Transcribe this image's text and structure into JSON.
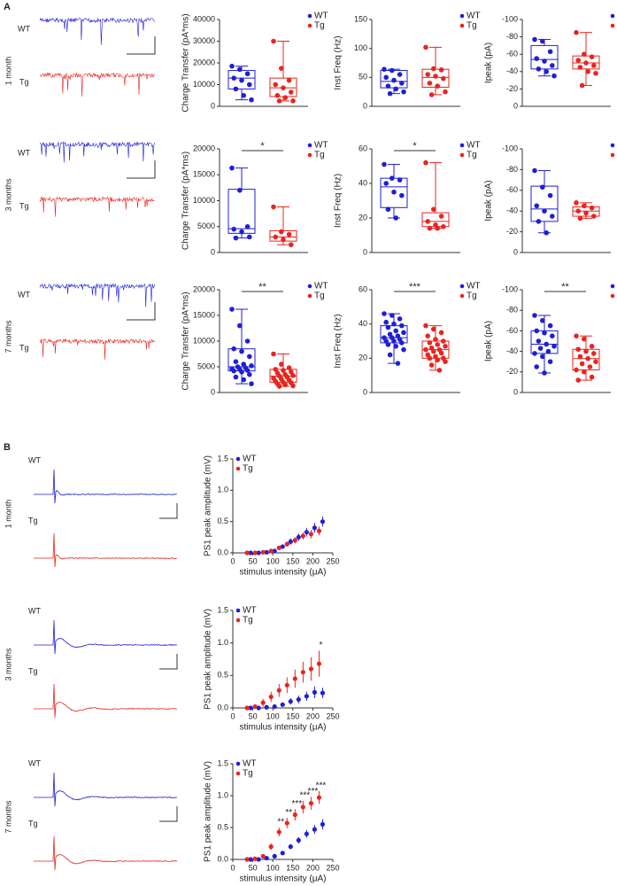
{
  "panel_a": {
    "letter": "A",
    "rows": [
      {
        "age": "1 month",
        "labels": [
          "WT",
          "Tg"
        ]
      },
      {
        "age": "3 months",
        "labels": [
          "WT",
          "Tg"
        ]
      },
      {
        "age": "7 months",
        "labels": [
          "WT",
          "Tg"
        ]
      }
    ]
  },
  "panel_b": {
    "letter": "B",
    "rows": [
      {
        "age": "1 month",
        "labels": [
          "WT",
          "Tg"
        ]
      },
      {
        "age": "3 months",
        "labels": [
          "WT",
          "Tg"
        ]
      },
      {
        "age": "7 months",
        "labels": [
          "WT",
          "Tg"
        ]
      }
    ]
  },
  "chart_data": [
    {
      "type": "box",
      "ylabel": "Charge Transfer (pA*ms)",
      "ylim": [
        0,
        40000
      ],
      "yticks": [
        0,
        10000,
        20000,
        30000,
        40000
      ],
      "series": [
        {
          "name": "WT",
          "color": "#1f1fd6",
          "values": [
            18500,
            17000,
            15000,
            13000,
            12000,
            10000,
            8000,
            5000,
            3000
          ],
          "box": [
            3000,
            8000,
            13000,
            16500,
            18500
          ]
        },
        {
          "name": "Tg",
          "color": "#e8251f",
          "values": [
            30000,
            17500,
            12000,
            10000,
            8500,
            6500,
            5000,
            4000,
            2500,
            2500
          ],
          "box": [
            2500,
            4500,
            8500,
            13000,
            30000
          ]
        }
      ]
    },
    {
      "type": "box",
      "ylabel": "Inst Freq (Hz)",
      "ylim": [
        0,
        150
      ],
      "yticks": [
        0,
        50,
        100,
        150
      ],
      "series": [
        {
          "name": "WT",
          "color": "#1f1fd6",
          "values": [
            64,
            62,
            55,
            50,
            45,
            40,
            35,
            30,
            25,
            22
          ],
          "box": [
            22,
            32,
            43,
            62,
            64
          ]
        },
        {
          "name": "Tg",
          "color": "#e8251f",
          "values": [
            102,
            65,
            63,
            55,
            52,
            48,
            40,
            35,
            25,
            20
          ],
          "box": [
            20,
            33,
            50,
            64,
            102
          ]
        }
      ]
    },
    {
      "type": "box",
      "ylabel": "Ipeak (pA)",
      "ylim": [
        0,
        -100
      ],
      "yticks": [
        0,
        -20,
        -40,
        -60,
        -80,
        -100
      ],
      "series": [
        {
          "name": "WT",
          "color": "#1f1fd6",
          "values": [
            -77,
            -75,
            -63,
            -55,
            -52,
            -47,
            -43,
            -40,
            -35
          ],
          "box": [
            -35,
            -43,
            -54,
            -70,
            -77
          ]
        },
        {
          "name": "Tg",
          "color": "#e8251f",
          "values": [
            -85,
            -60,
            -57,
            -53,
            -50,
            -47,
            -45,
            -40,
            -38,
            -24
          ],
          "box": [
            -24,
            -43,
            -50,
            -58,
            -85
          ]
        }
      ]
    },
    {
      "type": "box",
      "ylabel": "Charge Transfer (pA*ms)",
      "ylim": [
        0,
        20000
      ],
      "yticks": [
        0,
        5000,
        10000,
        15000,
        20000
      ],
      "significance": "*",
      "series": [
        {
          "name": "WT",
          "color": "#1f1fd6",
          "values": [
            16300,
            12000,
            5000,
            4500,
            4000,
            3000,
            2800
          ],
          "box": [
            2800,
            3700,
            4600,
            12200,
            16300
          ]
        },
        {
          "name": "Tg",
          "color": "#e8251f",
          "values": [
            8800,
            4000,
            3500,
            3000,
            2500,
            1500
          ],
          "box": [
            1500,
            2200,
            3000,
            4200,
            8800
          ]
        }
      ]
    },
    {
      "type": "box",
      "ylabel": "Inst Freq (Hz)",
      "ylim": [
        0,
        60
      ],
      "yticks": [
        0,
        20,
        40,
        60
      ],
      "significance": "*",
      "series": [
        {
          "name": "WT",
          "color": "#1f1fd6",
          "values": [
            51,
            43,
            42,
            40,
            35,
            33,
            25,
            20
          ],
          "box": [
            20,
            26,
            38,
            43,
            51
          ]
        },
        {
          "name": "Tg",
          "color": "#e8251f",
          "values": [
            52,
            25,
            21,
            18,
            16,
            15,
            14,
            14
          ],
          "box": [
            14,
            15,
            18,
            23,
            52
          ]
        }
      ]
    },
    {
      "type": "box",
      "ylabel": "Ipeak (pA)",
      "ylim": [
        0,
        -100
      ],
      "yticks": [
        0,
        -20,
        -40,
        -60,
        -80,
        -100
      ],
      "series": [
        {
          "name": "WT",
          "color": "#1f1fd6",
          "values": [
            -79,
            -63,
            -55,
            -45,
            -40,
            -35,
            -30,
            -19
          ],
          "box": [
            -19,
            -30,
            -42,
            -64,
            -79
          ]
        },
        {
          "name": "Tg",
          "color": "#e8251f",
          "values": [
            -48,
            -45,
            -43,
            -40,
            -38,
            -35,
            -33
          ],
          "box": [
            -33,
            -35,
            -40,
            -44,
            -48
          ]
        }
      ]
    },
    {
      "type": "box",
      "ylabel": "Charge Transfer (pA*ms)",
      "ylim": [
        0,
        20000
      ],
      "yticks": [
        0,
        5000,
        10000,
        15000,
        20000
      ],
      "significance": "**",
      "series": [
        {
          "name": "WT",
          "color": "#1f1fd6",
          "values": [
            16200,
            13000,
            10000,
            8500,
            8000,
            7000,
            6000,
            5500,
            5200,
            5000,
            4800,
            4600,
            4500,
            4300,
            4200,
            4000,
            3500,
            3000,
            2500,
            1700
          ],
          "box": [
            1700,
            4200,
            5000,
            8500,
            16200
          ]
        },
        {
          "name": "Tg",
          "color": "#e8251f",
          "values": [
            7500,
            5500,
            4800,
            4500,
            4300,
            4000,
            3800,
            3500,
            3300,
            3200,
            3000,
            2800,
            2600,
            2400,
            2200,
            2000,
            1900,
            1700,
            1500,
            1300,
            1200
          ],
          "box": [
            1200,
            2000,
            3200,
            4500,
            7500
          ]
        }
      ]
    },
    {
      "type": "box",
      "ylabel": "Inst Freq (Hz)",
      "ylim": [
        0,
        60
      ],
      "yticks": [
        0,
        20,
        40,
        60
      ],
      "significance": "***",
      "series": [
        {
          "name": "WT",
          "color": "#1f1fd6",
          "values": [
            46,
            45,
            43,
            41,
            40,
            39,
            38,
            36,
            35,
            34,
            33,
            32,
            32,
            31,
            30,
            30,
            29,
            28,
            27,
            25,
            22,
            17
          ],
          "box": [
            17,
            29,
            32,
            39,
            46
          ]
        },
        {
          "name": "Tg",
          "color": "#e8251f",
          "values": [
            39,
            37,
            35,
            33,
            31,
            30,
            29,
            28,
            27,
            26,
            25,
            25,
            24,
            23,
            22,
            21,
            20,
            20,
            19,
            18,
            16,
            13
          ],
          "box": [
            13,
            20,
            25,
            30,
            39
          ]
        }
      ]
    },
    {
      "type": "box",
      "ylabel": "Ipeak (pA)",
      "ylim": [
        0,
        -100
      ],
      "yticks": [
        0,
        -20,
        -40,
        -60,
        -80,
        -100
      ],
      "significance": "**",
      "series": [
        {
          "name": "WT",
          "color": "#1f1fd6",
          "values": [
            -75,
            -70,
            -65,
            -60,
            -58,
            -55,
            -50,
            -47,
            -45,
            -43,
            -40,
            -38,
            -35,
            -30,
            -25,
            -19
          ],
          "box": [
            -19,
            -38,
            -47,
            -60,
            -75
          ]
        },
        {
          "name": "Tg",
          "color": "#e8251f",
          "values": [
            -55,
            -52,
            -45,
            -42,
            -40,
            -38,
            -35,
            -33,
            -30,
            -28,
            -25,
            -22,
            -20,
            -15,
            -12
          ],
          "box": [
            -12,
            -22,
            -33,
            -42,
            -55
          ]
        }
      ]
    },
    {
      "type": "errorscatter",
      "ylabel": "PS1 peak amplitude (mV)",
      "xlabel": "stimulus intensity (μA)",
      "xlim": [
        0,
        250
      ],
      "xticks": [
        0,
        50,
        100,
        150,
        200,
        250
      ],
      "ylim": [
        0,
        1.5
      ],
      "yticks": [
        {
          "value": 0,
          "label": "0.0"
        },
        0.5,
        {
          "value": 1,
          "label": "1.0"
        },
        1.5
      ],
      "x": [
        40,
        60,
        80,
        100,
        120,
        140,
        160,
        180,
        200,
        220
      ],
      "series": [
        {
          "name": "WT",
          "color": "#1f1fd6",
          "values": [
            0,
            0,
            0.01,
            0.03,
            0.1,
            0.18,
            0.25,
            0.33,
            0.4,
            0.5
          ],
          "errors": [
            0.01,
            0.01,
            0.01,
            0.02,
            0.03,
            0.05,
            0.06,
            0.07,
            0.08,
            0.08
          ]
        },
        {
          "name": "Tg",
          "color": "#e8251f",
          "values": [
            0,
            0,
            0.01,
            0.03,
            0.08,
            0.14,
            0.2,
            0.27,
            0.3,
            0.35
          ],
          "errors": [
            0.01,
            0.01,
            0.01,
            0.02,
            0.03,
            0.04,
            0.05,
            0.06,
            0.07,
            0.07
          ]
        }
      ]
    },
    {
      "type": "errorscatter",
      "ylabel": "PS1 peak amplitude (mV)",
      "xlabel": "stimulus intensity (μA)",
      "xlim": [
        0,
        250
      ],
      "xticks": [
        0,
        50,
        100,
        150,
        200,
        250
      ],
      "ylim": [
        0,
        1.5
      ],
      "yticks": [
        {
          "value": 0,
          "label": "0.0"
        },
        0.5,
        {
          "value": 1,
          "label": "1.0"
        },
        1.5
      ],
      "x": [
        40,
        60,
        80,
        100,
        120,
        140,
        160,
        180,
        200,
        220
      ],
      "series": [
        {
          "name": "WT",
          "color": "#1f1fd6",
          "values": [
            0,
            0,
            0.01,
            0.02,
            0.05,
            0.1,
            0.13,
            0.18,
            0.24,
            0.23
          ],
          "errors": [
            0.01,
            0.01,
            0.01,
            0.02,
            0.03,
            0.05,
            0.06,
            0.07,
            0.09,
            0.08
          ]
        },
        {
          "name": "Tg",
          "color": "#e8251f",
          "values": [
            0,
            0.02,
            0.08,
            0.17,
            0.27,
            0.35,
            0.45,
            0.55,
            0.6,
            0.68
          ],
          "errors": [
            0.01,
            0.03,
            0.06,
            0.08,
            0.1,
            0.12,
            0.14,
            0.16,
            0.18,
            0.2
          ]
        }
      ],
      "annotations": [
        {
          "x": 220,
          "label": "*"
        }
      ]
    },
    {
      "type": "errorscatter",
      "ylabel": "PS1 peak amplitude (mV)",
      "xlabel": "stimulus intensity (μA)",
      "xlim": [
        0,
        250
      ],
      "xticks": [
        0,
        50,
        100,
        150,
        200,
        250
      ],
      "ylim": [
        0,
        1.5
      ],
      "yticks": [
        {
          "value": 0,
          "label": "0.0"
        },
        0.5,
        {
          "value": 1,
          "label": "1.0"
        },
        1.5
      ],
      "x": [
        40,
        60,
        80,
        100,
        120,
        140,
        160,
        180,
        200,
        220
      ],
      "series": [
        {
          "name": "WT",
          "color": "#1f1fd6",
          "values": [
            0,
            0,
            0.02,
            0.05,
            0.1,
            0.2,
            0.3,
            0.4,
            0.47,
            0.55
          ],
          "errors": [
            0.01,
            0.01,
            0.01,
            0.02,
            0.03,
            0.04,
            0.05,
            0.06,
            0.07,
            0.08
          ]
        },
        {
          "name": "Tg",
          "color": "#e8251f",
          "values": [
            0,
            0.01,
            0.05,
            0.2,
            0.43,
            0.57,
            0.7,
            0.82,
            0.88,
            0.97
          ],
          "errors": [
            0.01,
            0.01,
            0.03,
            0.05,
            0.07,
            0.08,
            0.09,
            0.1,
            0.1,
            0.1
          ]
        }
      ],
      "annotations": [
        {
          "x": 120,
          "label": "**"
        },
        {
          "x": 140,
          "label": "**"
        },
        {
          "x": 160,
          "label": "***"
        },
        {
          "x": 180,
          "label": "***"
        },
        {
          "x": 200,
          "label": "***"
        },
        {
          "x": 220,
          "label": "***"
        }
      ]
    }
  ]
}
